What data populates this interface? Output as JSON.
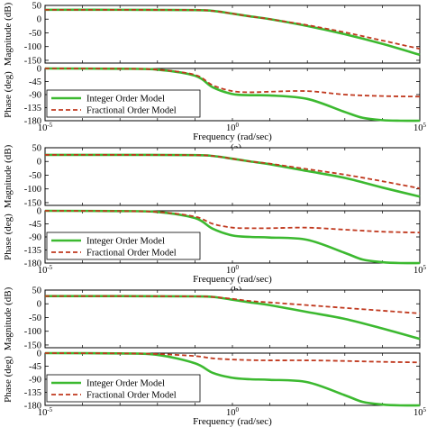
{
  "colors": {
    "integer": "#3cb930",
    "fractional": "#c0391f",
    "axis": "#000000",
    "background": "#ffffff"
  },
  "chart_data": [
    {
      "panel": "(a)",
      "type": "line",
      "subplots": [
        {
          "kind": "magnitude",
          "ylabel": "Magnitude (dB)",
          "ylim": [
            -160,
            50
          ],
          "yticks": [
            "50",
            "0",
            "-50",
            "-100",
            "-150"
          ],
          "xscale": "log",
          "xlim": [
            1e-05,
            100000
          ],
          "series": [
            {
              "name": "Integer Order Model",
              "x": [
                1e-05,
                0.001,
                0.1,
                0.3,
                1,
                3,
                10,
                100,
                1000,
                10000,
                100000
              ],
              "y": [
                34,
                34,
                33,
                30,
                20,
                10,
                0,
                -25,
                -55,
                -90,
                -130
              ]
            },
            {
              "name": "Fractional Order Model",
              "x": [
                1e-05,
                0.001,
                0.1,
                0.3,
                1,
                3,
                10,
                100,
                1000,
                10000,
                100000
              ],
              "y": [
                34,
                34,
                33,
                30,
                20,
                10,
                0,
                -22,
                -48,
                -78,
                -108
              ]
            }
          ]
        },
        {
          "kind": "phase",
          "ylabel": "Phase (deg)",
          "ylim": [
            -180,
            0
          ],
          "yticks": [
            "0",
            "-45",
            "-90",
            "-135",
            "-180"
          ],
          "xscale": "log",
          "xlim": [
            1e-05,
            100000
          ],
          "series": [
            {
              "name": "Integer Order Model",
              "x": [
                1e-05,
                0.001,
                0.01,
                0.1,
                0.3,
                1,
                3,
                10,
                100,
                1000,
                3000,
                10000,
                30000,
                100000
              ],
              "y": [
                0,
                -1,
                -4,
                -25,
                -65,
                -88,
                -92,
                -93,
                -105,
                -150,
                -170,
                -178,
                -180,
                -180
              ]
            },
            {
              "name": "Fractional Order Model",
              "x": [
                1e-05,
                0.001,
                0.01,
                0.1,
                0.3,
                1,
                3,
                10,
                100,
                1000,
                10000,
                100000
              ],
              "y": [
                0,
                -1,
                -4,
                -22,
                -58,
                -78,
                -82,
                -80,
                -78,
                -90,
                -95,
                -97
              ]
            }
          ]
        }
      ],
      "xlabel": "Frequency (rad/sec)",
      "xticks": [
        {
          "base": "10",
          "exp": "-5",
          "value": 1e-05
        },
        {
          "base": "10",
          "exp": "0",
          "value": 1
        },
        {
          "base": "10",
          "exp": "5",
          "value": 100000
        }
      ],
      "legend": [
        "Integer Order Model",
        "Fractional Order Model"
      ],
      "legend_position": "bottom-left of phase plot"
    },
    {
      "panel": "(b)",
      "type": "line",
      "subplots": [
        {
          "kind": "magnitude",
          "ylabel": "Magnitude (dB)",
          "ylim": [
            -160,
            50
          ],
          "yticks": [
            "50",
            "0",
            "-50",
            "-100",
            "-150"
          ],
          "xscale": "log",
          "xlim": [
            1e-05,
            100000
          ],
          "series": [
            {
              "name": "Integer Order Model",
              "x": [
                1e-05,
                0.001,
                0.1,
                0.3,
                1,
                3,
                10,
                100,
                1000,
                10000,
                100000
              ],
              "y": [
                24,
                24,
                23,
                20,
                10,
                0,
                -10,
                -35,
                -60,
                -95,
                -128
              ]
            },
            {
              "name": "Fractional Order Model",
              "x": [
                1e-05,
                0.001,
                0.1,
                0.3,
                1,
                3,
                10,
                100,
                1000,
                10000,
                100000
              ],
              "y": [
                24,
                24,
                23,
                20,
                10,
                0,
                -8,
                -28,
                -48,
                -72,
                -98
              ]
            }
          ]
        },
        {
          "kind": "phase",
          "ylabel": "Phase (deg)",
          "ylim": [
            -180,
            0
          ],
          "yticks": [
            "0",
            "-45",
            "-90",
            "-135",
            "-180"
          ],
          "xscale": "log",
          "xlim": [
            1e-05,
            100000
          ],
          "series": [
            {
              "name": "Integer Order Model",
              "x": [
                1e-05,
                0.001,
                0.01,
                0.1,
                0.3,
                1,
                3,
                10,
                100,
                1000,
                3000,
                10000,
                30000,
                100000
              ],
              "y": [
                0,
                -1,
                -4,
                -25,
                -62,
                -85,
                -90,
                -92,
                -100,
                -145,
                -168,
                -177,
                -180,
                -180
              ]
            },
            {
              "name": "Fractional Order Model",
              "x": [
                1e-05,
                0.001,
                0.01,
                0.1,
                0.3,
                1,
                3,
                10,
                100,
                1000,
                10000,
                100000
              ],
              "y": [
                0,
                -1,
                -4,
                -20,
                -45,
                -58,
                -60,
                -60,
                -58,
                -65,
                -72,
                -75
              ]
            }
          ]
        }
      ],
      "xlabel": "Frequency (rad/sec)",
      "xticks": [
        {
          "base": "10",
          "exp": "-5",
          "value": 1e-05
        },
        {
          "base": "10",
          "exp": "0",
          "value": 1
        },
        {
          "base": "10",
          "exp": "5",
          "value": 100000
        }
      ],
      "legend": [
        "Integer Order Model",
        "Fractional Order Model"
      ],
      "legend_position": "bottom-left of phase plot"
    },
    {
      "panel": "(c)",
      "type": "line",
      "subplots": [
        {
          "kind": "magnitude",
          "ylabel": "Magnitude (dB)",
          "ylim": [
            -160,
            50
          ],
          "yticks": [
            "50",
            "0",
            "-50",
            "-100",
            "-150"
          ],
          "xscale": "log",
          "xlim": [
            1e-05,
            100000
          ],
          "series": [
            {
              "name": "Integer Order Model",
              "x": [
                1e-05,
                0.001,
                0.1,
                0.3,
                1,
                3,
                10,
                100,
                1000,
                10000,
                100000
              ],
              "y": [
                28,
                28,
                27,
                25,
                15,
                5,
                -5,
                -30,
                -55,
                -90,
                -128
              ]
            },
            {
              "name": "Fractional Order Model",
              "x": [
                1e-05,
                0.001,
                0.1,
                0.3,
                1,
                3,
                10,
                100,
                1000,
                10000,
                100000
              ],
              "y": [
                28,
                28,
                27,
                25,
                18,
                10,
                5,
                -5,
                -15,
                -25,
                -35
              ]
            }
          ]
        },
        {
          "kind": "phase",
          "ylabel": "Phase (deg)",
          "ylim": [
            -180,
            0
          ],
          "yticks": [
            "0",
            "-45",
            "-90",
            "-135",
            "-180"
          ],
          "xscale": "log",
          "xlim": [
            1e-05,
            100000
          ],
          "series": [
            {
              "name": "Integer Order Model",
              "x": [
                1e-05,
                0.001,
                0.01,
                0.1,
                0.3,
                1,
                3,
                10,
                100,
                1000,
                3000,
                10000,
                30000,
                100000
              ],
              "y": [
                0,
                -1,
                -6,
                -35,
                -68,
                -85,
                -90,
                -92,
                -100,
                -145,
                -168,
                -177,
                -180,
                -180
              ]
            },
            {
              "name": "Fractional Order Model",
              "x": [
                1e-05,
                0.001,
                0.01,
                0.1,
                0.3,
                1,
                3,
                10,
                100,
                1000,
                10000,
                100000
              ],
              "y": [
                0,
                -1,
                -3,
                -10,
                -18,
                -22,
                -24,
                -25,
                -25,
                -27,
                -30,
                -32
              ]
            }
          ]
        }
      ],
      "xlabel": "Frequency (rad/sec)",
      "xticks": [
        {
          "base": "10",
          "exp": "-5",
          "value": 1e-05
        },
        {
          "base": "10",
          "exp": "0",
          "value": 1
        },
        {
          "base": "10",
          "exp": "5",
          "value": 100000
        }
      ],
      "legend": [
        "Integer Order Model",
        "Fractional Order Model"
      ],
      "legend_position": "bottom-left of phase plot"
    }
  ]
}
